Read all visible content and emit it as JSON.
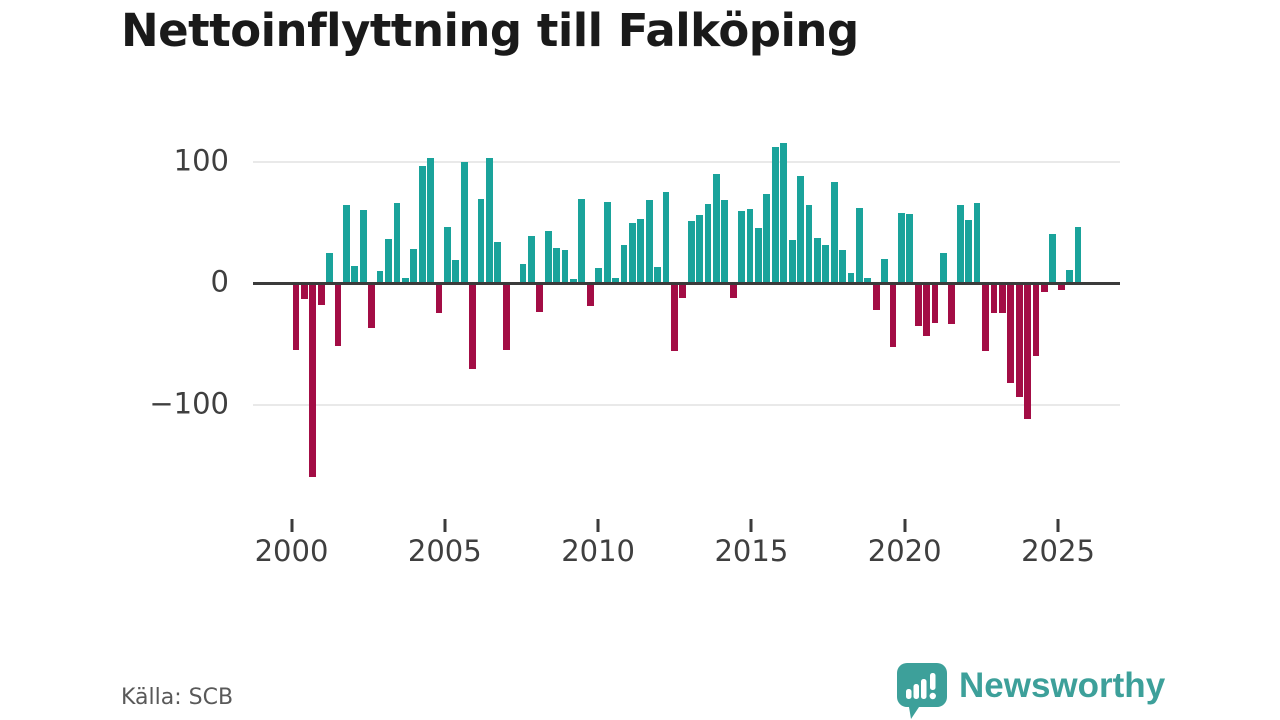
{
  "title": "Nettoinflyttning till Falköping",
  "source": "Källa: SCB",
  "branding": {
    "wordmark": "Newsworthy",
    "icon": "newsworthy-speech-bubble-bar-chart-icon",
    "color": "#3da09a"
  },
  "colors": {
    "positive_bar": "#1aa39b",
    "negative_bar": "#a30d45",
    "grid": "#e9e9e9",
    "zero_line": "#3b3b3b",
    "axis_text": "#3f3f3f",
    "title_text": "#1a1a1a",
    "source_text": "#595959"
  },
  "chart_data": {
    "type": "bar",
    "title": "Nettoinflyttning till Falköping",
    "xlabel": "",
    "ylabel": "",
    "legend": "none",
    "grid": "horizontal gridlines at 100 and -100, dark zero line",
    "y_tick_labels": [
      "100",
      "0",
      "−100"
    ],
    "y_tick_values": [
      100,
      0,
      -100
    ],
    "ylim": [
      -175,
      125
    ],
    "x_tick_labels": [
      "2000",
      "2005",
      "2010",
      "2015",
      "2020",
      "2025"
    ],
    "x_tick_years": [
      2000,
      2005,
      2010,
      2015,
      2020,
      2025
    ],
    "x_range_years": [
      2000.1,
      2025.7
    ],
    "series_note": "net migration per period, teal = positive, dark red = negative (values estimated from pixels)",
    "values": [
      -55,
      -13,
      -160,
      -18,
      25,
      -52,
      64,
      14,
      60,
      -37,
      10,
      36,
      66,
      4,
      28,
      96,
      103,
      -25,
      46,
      19,
      100,
      -71,
      69,
      103,
      34,
      -55,
      0,
      16,
      39,
      -24,
      43,
      29,
      27,
      3,
      69,
      -19,
      12,
      67,
      4,
      31,
      49,
      53,
      68,
      13,
      75,
      -56,
      -12,
      51,
      56,
      65,
      90,
      68,
      -12,
      59,
      61,
      45,
      73,
      112,
      115,
      35,
      88,
      64,
      37,
      31,
      83,
      27,
      8,
      62,
      4,
      -22,
      20,
      -53,
      58,
      57,
      -35,
      -44,
      -33,
      25,
      -34,
      64,
      52,
      66,
      -56,
      -25,
      -25,
      -82,
      -94,
      -112,
      -60,
      -7,
      40,
      -6,
      11,
      46
    ]
  }
}
